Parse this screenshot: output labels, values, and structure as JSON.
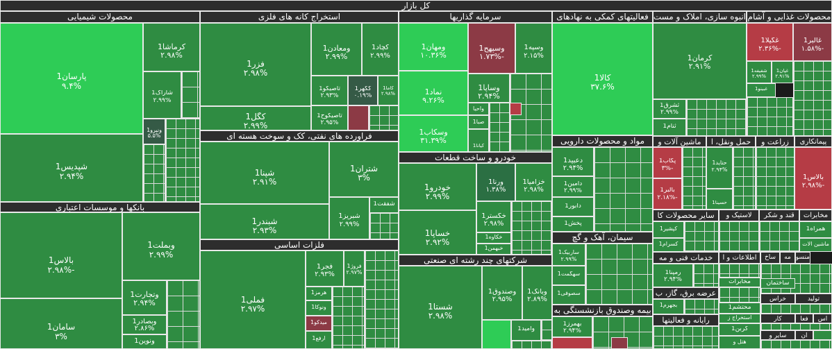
{
  "title": "کل بازار",
  "colors": {
    "up": "#2f8c42",
    "up_bright": "#2ecc56",
    "down": "#b53c45",
    "header": "#2d2d2d"
  },
  "sectors": [
    {
      "name": "محصولات شیمیایی"
    },
    {
      "name": "استخراج کانه های فلزی"
    },
    {
      "name": "سرمایه گذاریها"
    },
    {
      "name": "فعالیتهای کمکی به نهادهای"
    },
    {
      "name": "انبوه سازی، املاک و مست"
    },
    {
      "name": "محصولات غذایی و آشام"
    },
    {
      "name": "بانکها و موسسات اعتباری"
    },
    {
      "name": "فراورده های نفتی، کک و سوخت هسته ای"
    },
    {
      "name": "خودرو و ساخت قطعات"
    },
    {
      "name": "مواد و محصولات دارویی"
    },
    {
      "name": "ماشین آلات و"
    },
    {
      "name": "حمل ونقل، ا"
    },
    {
      "name": "زراعت و"
    },
    {
      "name": "فلزات اساسی"
    },
    {
      "name": "شرکتهای چند رشته ای صنعتی"
    },
    {
      "name": "سیمان، آهک و گچ"
    },
    {
      "name": "سایر محصولات کا"
    },
    {
      "name": "خدمات فنی و مه"
    },
    {
      "name": "اطلاعات و ا"
    },
    {
      "name": "عرضه برق، گاز، ب"
    },
    {
      "name": "بیمه وصندوق بازنشستگی به"
    },
    {
      "name": "رایانه و فعالیتها"
    },
    {
      "name": "پیمانکاری"
    },
    {
      "name": "قند و شکر"
    },
    {
      "name": "لاستیک و"
    },
    {
      "name": "مخابرات"
    },
    {
      "name": "منسوجات"
    }
  ],
  "tiles": [
    {
      "name": "پارسان1",
      "change": "۹.۴%"
    },
    {
      "name": "کرماشا1",
      "change": "۲.۹۸%"
    },
    {
      "name": "شاراک1",
      "change": "۲.۹۹%"
    },
    {
      "name": "ونیرو1",
      "change": "۵.۵%"
    },
    {
      "name": "شپدیس1",
      "change": "۲.۹۴%"
    },
    {
      "name": "فزر1",
      "change": "۲.۹۸%"
    },
    {
      "name": "ومعادن1",
      "change": "۲.۹۹%"
    },
    {
      "name": "کچاد1",
      "change": "۲.۹۹%"
    },
    {
      "name": "تاصیکو1",
      "change": "۲.۹۳%"
    },
    {
      "name": "کگهر1",
      "change": "۰.۱۹%"
    },
    {
      "name": "کاما1",
      "change": "۲.۹۸%"
    },
    {
      "name": "کگل1",
      "change": "۲.۹۹%"
    },
    {
      "name": "تاصیکوح1",
      "change": "۲.۹۵%"
    },
    {
      "name": "ومهان1",
      "change": "۱۰.۳۶%"
    },
    {
      "name": "وسپهح1",
      "change": "-۱.۷۳%"
    },
    {
      "name": "وسپه1",
      "change": "۲.۱۵%"
    },
    {
      "name": "نماد1",
      "change": "۹.۲۶%"
    },
    {
      "name": "وساپا1",
      "change": "۲.۹۴%"
    },
    {
      "name": "وسکاب1",
      "change": "۳۱.۳۹%"
    },
    {
      "name": "واحیا"
    },
    {
      "name": "صبا1"
    },
    {
      "name": "کیانا1"
    },
    {
      "name": "کالا1",
      "change": "۳۷.۶%"
    },
    {
      "name": "کرمان1",
      "change": "۲.۹۱%"
    },
    {
      "name": "ثشرق1",
      "change": "۲.۹۹%"
    },
    {
      "name": "ثنام1"
    },
    {
      "name": "غگیلا1",
      "change": "-۲.۳۶%"
    },
    {
      "name": "غالبر1",
      "change": "-۱.۵۸%"
    },
    {
      "name": "شفیفه1",
      "change": "۲.۹۹%"
    },
    {
      "name": "غپان1",
      "change": "۲.۹۱%"
    },
    {
      "name": "غبینو1"
    },
    {
      "name": "شپنا1",
      "change": "۲.۹۱%"
    },
    {
      "name": "شتران1",
      "change": "۳%"
    },
    {
      "name": "شفقت1"
    },
    {
      "name": "شبریز1",
      "change": "۲.۹۹%"
    },
    {
      "name": "شبندر1",
      "change": "۲.۹۳%"
    },
    {
      "name": "خودرو1",
      "change": "۲.۹۹%"
    },
    {
      "name": "ورنا1",
      "change": "۱.۳۸%"
    },
    {
      "name": "خزامیا1",
      "change": "۲.۹۸%"
    },
    {
      "name": "خگستر1",
      "change": "۲.۹۸%"
    },
    {
      "name": "خساپا1",
      "change": "۲.۹۲%"
    },
    {
      "name": "خکاوه1"
    },
    {
      "name": "خبهمن1"
    },
    {
      "name": "دعبید1",
      "change": "۲.۹۴%"
    },
    {
      "name": "دامین1",
      "change": "۲.۹۹%"
    },
    {
      "name": "دابور1"
    },
    {
      "name": "پخش1"
    },
    {
      "name": "پکاب1",
      "change": "-۳%"
    },
    {
      "name": "بالبر1",
      "change": "-۲.۱۸%"
    },
    {
      "name": "حتاید1",
      "change": "۲.۹۴%"
    },
    {
      "name": "حسینا1"
    },
    {
      "name": "بالاس1",
      "change": "-۲.۹۸%"
    },
    {
      "name": "وبملت1",
      "change": "۲.۹۹%"
    },
    {
      "name": "وتجارت1",
      "change": "۲.۹۴%"
    },
    {
      "name": "وبصادر1",
      "change": "۲.۸۶%"
    },
    {
      "name": "سامان1",
      "change": "۳%"
    },
    {
      "name": "ونوین1",
      "change": "۲.۹۹%"
    },
    {
      "name": "وپارس1"
    },
    {
      "name": "فملی1",
      "change": "۲.۹۷%"
    },
    {
      "name": "فجر1",
      "change": "۲.۹۳%"
    },
    {
      "name": "فروژ1",
      "change": "۲.۹۷%"
    },
    {
      "name": "هرمز1"
    },
    {
      "name": "ونوکا1"
    },
    {
      "name": "میدکو1"
    },
    {
      "name": "ارفع1"
    },
    {
      "name": "شستا1",
      "change": "۲.۹۸%"
    },
    {
      "name": "وصندوق1",
      "change": "۲.۹۵%"
    },
    {
      "name": "وبانک1",
      "change": "۲.۸۹%"
    },
    {
      "name": "وامید1"
    },
    {
      "name": "ساربیک1",
      "change": "۲.۹۹%"
    },
    {
      "name": "سهگمت1"
    },
    {
      "name": "سصوفی1"
    },
    {
      "name": "بهمرز1",
      "change": "۲.۹۴%"
    },
    {
      "name": "کپشیر1"
    },
    {
      "name": "کسرام1"
    },
    {
      "name": "رمپنا1",
      "change": "۲.۹۴%"
    },
    {
      "name": "بجهرم1"
    },
    {
      "name": "اخابر1"
    },
    {
      "name": "همراه1"
    },
    {
      "name": "ماشین آلات"
    },
    {
      "name": "مخابرات"
    },
    {
      "name": "ساختمان"
    },
    {
      "name": "کاشی"
    },
    {
      "name": "ساخ"
    },
    {
      "name": "مه"
    },
    {
      "name": "منسوجات"
    },
    {
      "name": "محتشم1"
    },
    {
      "name": "استخراج ز"
    },
    {
      "name": "کربن1"
    },
    {
      "name": "هتل و"
    },
    {
      "name": "سایر و"
    },
    {
      "name": "خراس"
    },
    {
      "name": "تولید"
    },
    {
      "name": "کار"
    },
    {
      "name": "فعا"
    },
    {
      "name": "اس"
    },
    {
      "name": "ان"
    }
  ]
}
